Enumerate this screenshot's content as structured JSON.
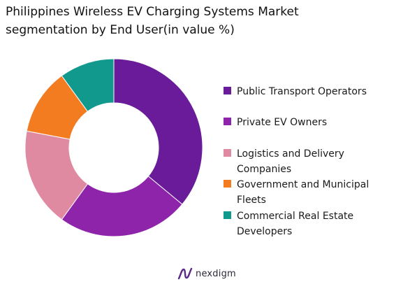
{
  "chart_data": {
    "type": "pie",
    "title": "Philippines Wireless EV Charging Systems Market segmentation by End User(in value %)",
    "title_lines": [
      "Philippines Wireless EV Charging Systems Market",
      "segmentation by End User(in value %)"
    ],
    "categories": [
      "Public Transport Operators",
      "Private EV Owners",
      "Logistics and Delivery Companies",
      "Government and Municipal Fleets",
      "Commercial Real Estate Developers"
    ],
    "legend_lines": [
      [
        "Public Transport Operators"
      ],
      [
        "Private EV Owners"
      ],
      [
        "Logistics and Delivery",
        "Companies"
      ],
      [
        "Government and Municipal",
        "Fleets"
      ],
      [
        "Commercial Real Estate",
        "Developers"
      ]
    ],
    "values": [
      36,
      24,
      18,
      12,
      10
    ],
    "colors": [
      "#6a1b9a",
      "#8e24aa",
      "#e08aa2",
      "#f47c20",
      "#11998e"
    ],
    "donut": true,
    "start_angle_deg": 0,
    "direction": "clockwise",
    "legend_position": "right"
  },
  "branding": {
    "name": "nexdigm"
  }
}
